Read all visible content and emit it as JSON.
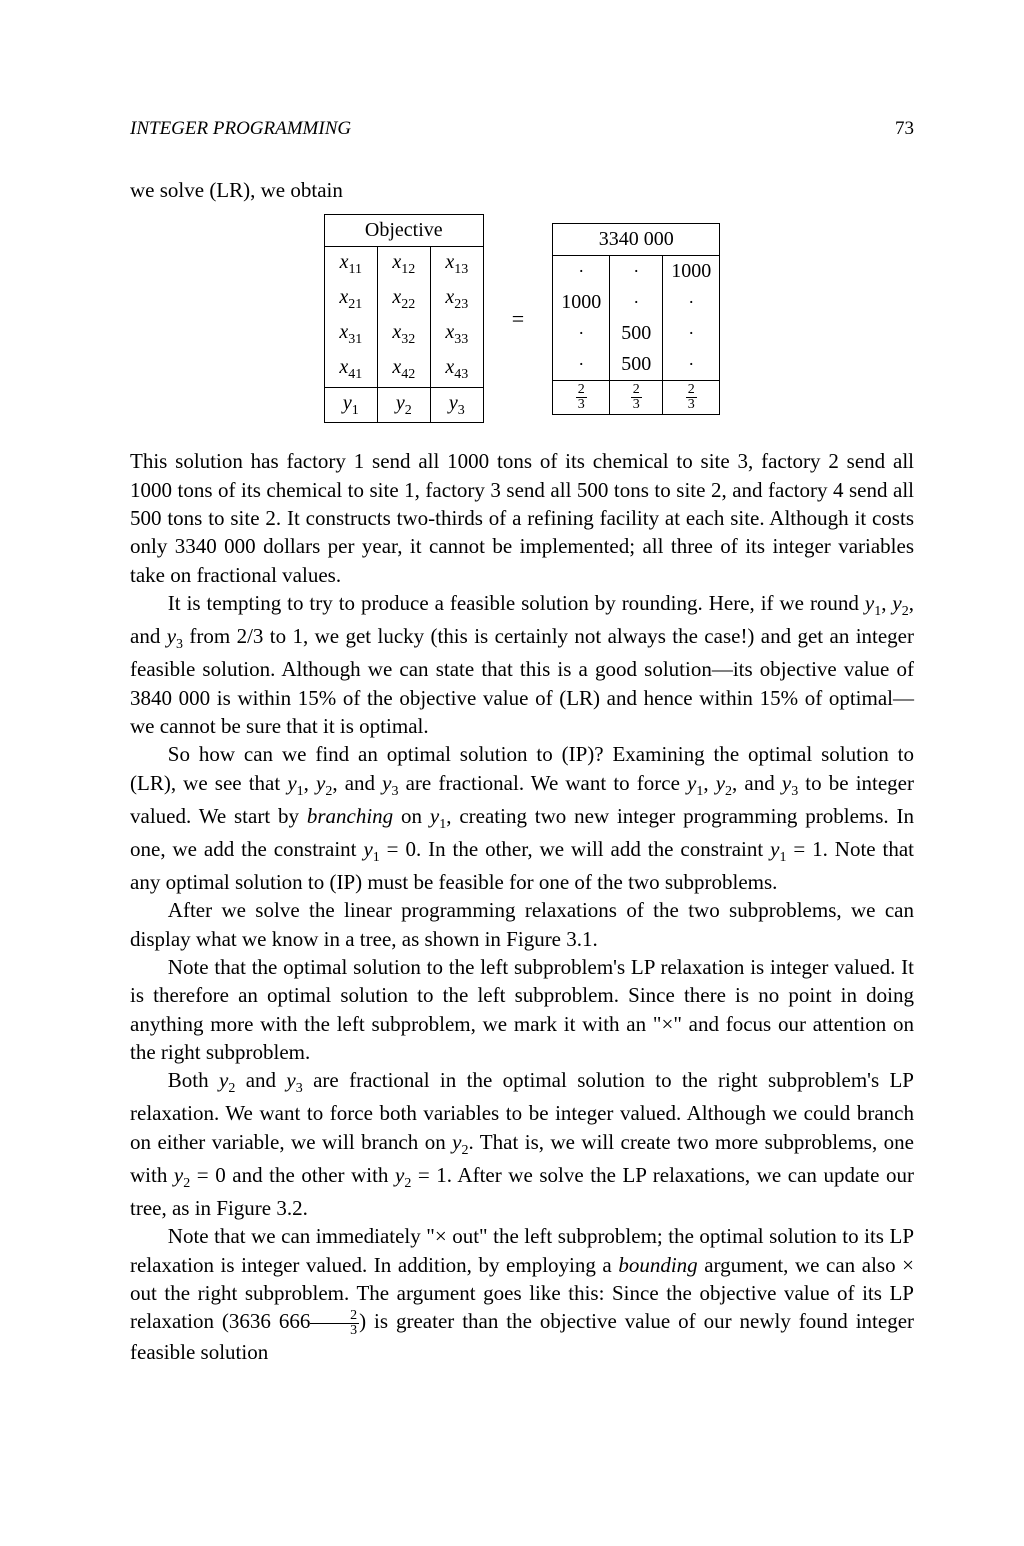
{
  "header": {
    "title": "INTEGER PROGRAMMING",
    "page_number": "73"
  },
  "intro_line": "we solve (LR), we obtain",
  "left_matrix": {
    "header": "Objective",
    "rows": [
      [
        "x",
        "11",
        "x",
        "12",
        "x",
        "13"
      ],
      [
        "x",
        "21",
        "x",
        "22",
        "x",
        "23"
      ],
      [
        "x",
        "31",
        "x",
        "32",
        "x",
        "33"
      ],
      [
        "x",
        "41",
        "x",
        "42",
        "x",
        "43"
      ]
    ],
    "last_row": [
      "y",
      "1",
      "y",
      "2",
      "y",
      "3"
    ]
  },
  "equals": "=",
  "right_matrix": {
    "header": "3340 000",
    "rows": [
      [
        "·",
        "·",
        "1000"
      ],
      [
        "1000",
        "·",
        "·"
      ],
      [
        "·",
        "500",
        "·"
      ],
      [
        "·",
        "500",
        "·"
      ]
    ],
    "last_row_frac": {
      "num": "2",
      "den": "3"
    }
  },
  "paragraphs": {
    "p1a": "This solution has factory 1 send all 1000 tons of its chemical to site 3, factory 2 send all 1000 tons of its chemical to site 1, factory 3 send all 500 tons to site 2, and factory 4 send all 500 tons to site 2. It constructs two-thirds of a refining facility at each site. Although it costs only 3340 000 dollars per year, it cannot be implemented; all three of its integer variables take on fractional values.",
    "p2_pre": "It is tempting to try to produce a feasible solution by rounding. Here, if we round ",
    "p2_y1": "y",
    "p2_s1": "1",
    "p2_sep1": ", ",
    "p2_y2": "y",
    "p2_s2": "2",
    "p2_sep2": ", and ",
    "p2_y3": "y",
    "p2_s3": "3",
    "p2_post": " from 2/3 to 1, we get lucky (this is certainly not always the case!) and get an integer feasible solution. Although we can state that this is a good solution—its objective value of 3840 000 is within 15% of the objective value of (LR) and hence within 15% of optimal—we cannot be sure that it is optimal.",
    "p3_pre": "So how can we find an optimal solution to (IP)? Examining the optimal solution to (LR), we see that ",
    "p3_y1": "y",
    "p3_s1": "1",
    "p3_c1": ", ",
    "p3_y2": "y",
    "p3_s2": "2",
    "p3_c2": ", and ",
    "p3_y3": "y",
    "p3_s3": "3",
    "p3_mid1": " are fractional. We want to force ",
    "p3_y1b": "y",
    "p3_s1b": "1",
    "p3_c3": ", ",
    "p3_y2b": "y",
    "p3_s2b": "2",
    "p3_c4": ", and ",
    "p3_y3b": "y",
    "p3_s3b": "3",
    "p3_mid2": " to be integer valued. We start by ",
    "p3_branching": "branching",
    "p3_mid3": " on ",
    "p3_y1c": "y",
    "p3_s1c": "1",
    "p3_mid4": ", creating two new integer programming problems. In one, we add the constraint ",
    "p3_y1d": "y",
    "p3_s1d": "1",
    "p3_eq0": " = 0. In the other, we will add the constraint ",
    "p3_y1e": "y",
    "p3_s1e": "1",
    "p3_eq1": " = 1. Note that any optimal solution to (IP) must be feasible for one of the two subproblems.",
    "p4": "After we solve the linear programming relaxations of the two subproblems, we can display what we know in a tree, as shown in Figure 3.1.",
    "p5": "Note that the optimal solution to the left subproblem's LP relaxation is integer valued. It is therefore an optimal solution to the left subproblem. Since there is no point in doing anything more with the left subproblem, we mark it with an \"×\" and focus our attention on the right subproblem.",
    "p6_pre": "Both ",
    "p6_y2": "y",
    "p6_s2": "2",
    "p6_and": " and ",
    "p6_y3": "y",
    "p6_s3": "3",
    "p6_mid": " are fractional in the optimal solution to the right subproblem's LP relaxation. We want to force both variables to be integer valued. Although we could branch on either variable, we will branch on ",
    "p6_y2b": "y",
    "p6_s2b": "2",
    "p6_mid2": ". That is, we will create two more subproblems, one with ",
    "p6_y2c": "y",
    "p6_s2c": "2",
    "p6_eq0": " = 0 and the other with ",
    "p6_y2d": "y",
    "p6_s2d": "2",
    "p6_eq1": " = 1. After we solve the LP relaxations, we can update our tree, as in Figure 3.2.",
    "p7_pre": "Note that we can immediately \"× out\" the left subproblem; the optimal solution to its LP relaxation is integer valued. In addition, by employing a ",
    "p7_bounding": "bounding",
    "p7_post": " argument, we can also × out the right subproblem. The argument goes like this: Since the objective value of its LP relaxation (3636 666",
    "p7_frac_n": "2",
    "p7_frac_d": "3",
    "p7_tail": ") is greater than the objective value of our newly found integer feasible solution"
  }
}
